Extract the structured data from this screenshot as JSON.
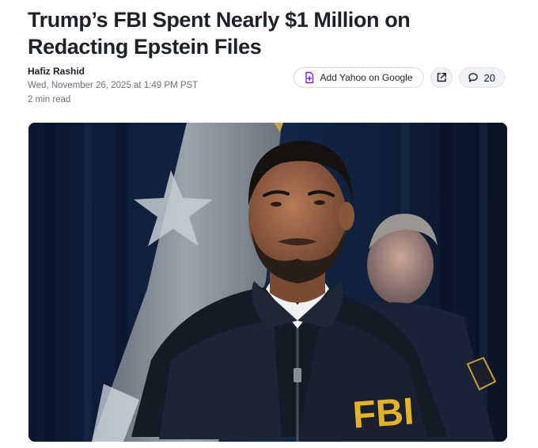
{
  "article": {
    "headline": "Trump’s FBI Spent Nearly $1 Million on Redacting Epstein Files",
    "author": "Hafiz Rashid",
    "date": "Wed, November 26, 2025 at 1:49 PM PST",
    "read_time": "2 min read"
  },
  "actions": {
    "add_yahoo_google_label": "Add Yahoo on Google",
    "comment_count": "20"
  },
  "photo": {
    "jacket_text": "FBI"
  },
  "colors": {
    "accent_purple": "#7e1fff",
    "text_dark": "#1d2228",
    "text_muted": "#6b6f76"
  },
  "icons": {
    "add": "add-to-google-icon",
    "share": "share-icon",
    "comment": "comment-icon"
  }
}
